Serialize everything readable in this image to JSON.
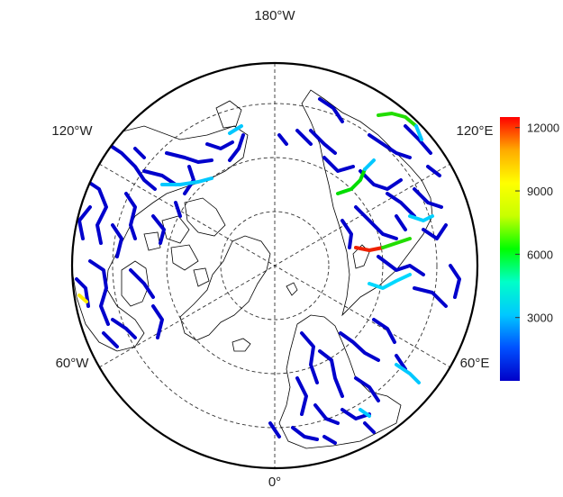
{
  "map": {
    "projection": "north-polar-stereographic",
    "longitude_labels": {
      "top": "180°W",
      "bottom": "0°",
      "upper_left": "120°W",
      "upper_right": "120°E",
      "lower_left": "60°W",
      "lower_right": "60°E"
    },
    "graticule_style": "dashed",
    "land_outline_color": "#000000",
    "river_color_low": "#0000cc"
  },
  "colorbar": {
    "ticks": [
      "12000",
      "9000",
      "6000",
      "3000"
    ],
    "tick_values": [
      12000,
      9000,
      6000,
      3000
    ],
    "range": [
      0,
      12500
    ],
    "colors": [
      "#0000c8",
      "#0050ff",
      "#00c8ff",
      "#00ffc8",
      "#00ff00",
      "#c8ff00",
      "#ffff00",
      "#ffaa00",
      "#ff0000"
    ]
  }
}
